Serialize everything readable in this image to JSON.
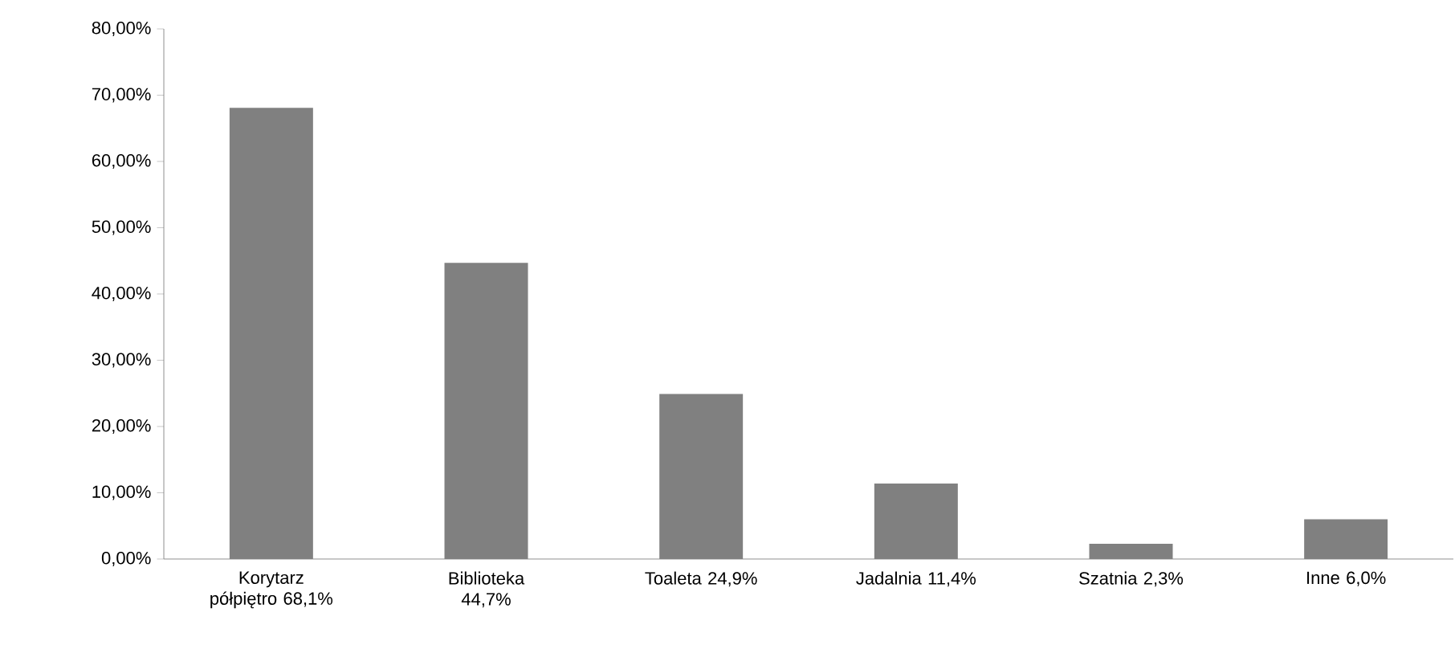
{
  "chart_data": {
    "type": "bar",
    "categories": [
      "Korytarz półpiętro 68,1%",
      "Biblioteka 44,7%",
      "Toaleta 24,9%",
      "Jadalnia 11,4%",
      "Szatnia 2,3%",
      "Inne 6,0%"
    ],
    "values": [
      68.1,
      44.7,
      24.9,
      11.4,
      2.3,
      6.0
    ],
    "color": "#808080",
    "ylim": [
      0,
      80
    ],
    "yticks": [
      {
        "value": 0,
        "label": "0,00%"
      },
      {
        "value": 10,
        "label": "10,00%"
      },
      {
        "value": 20,
        "label": "20,00%"
      },
      {
        "value": 30,
        "label": "30,00%"
      },
      {
        "value": 40,
        "label": "40,00%"
      },
      {
        "value": 50,
        "label": "50,00%"
      },
      {
        "value": 60,
        "label": "60,00%"
      },
      {
        "value": 70,
        "label": "70,00%"
      },
      {
        "value": 80,
        "label": "80,00%"
      }
    ],
    "grid": false
  }
}
